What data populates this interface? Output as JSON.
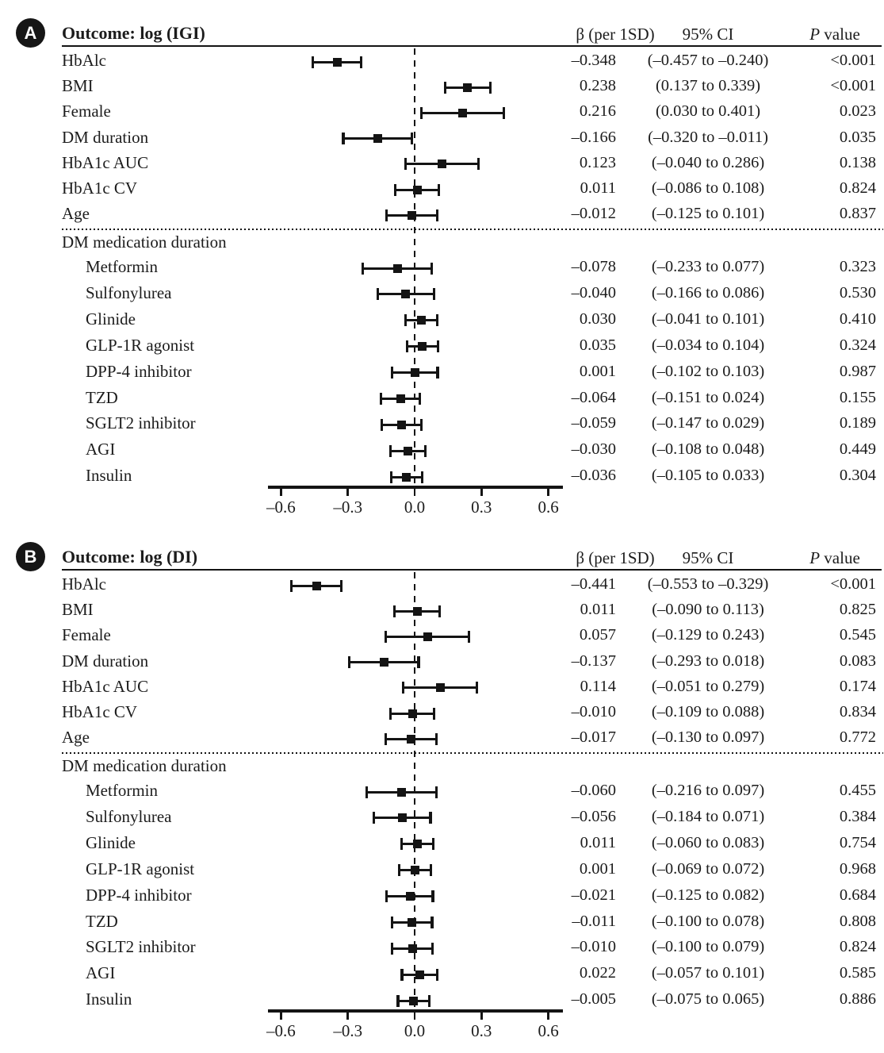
{
  "chart_data": [
    {
      "type": "scatter",
      "variant": "forest-plot",
      "panel_label": "A",
      "title": "Outcome: log (IGI)",
      "columns": {
        "beta": "β (per 1SD)",
        "ci": "95% CI",
        "p_italic": "P",
        "p_rest": "value"
      },
      "group_label": "DM medication duration",
      "legend": "none",
      "grid": false,
      "axis": {
        "min": -0.66,
        "max": 0.66,
        "zero_line": 0.0,
        "ticks": [
          -0.6,
          -0.3,
          0.0,
          0.3,
          0.6
        ],
        "tick_labels": [
          "–0.6",
          "–0.3",
          "0.0",
          "0.3",
          "0.6"
        ]
      },
      "main_rows": [
        {
          "label": "HbAlc",
          "beta": -0.348,
          "lo": -0.457,
          "hi": -0.24,
          "beta_text": "–0.348",
          "ci_text": "(–0.457 to –0.240)",
          "p_text": "<0.001"
        },
        {
          "label": "BMI",
          "beta": 0.238,
          "lo": 0.137,
          "hi": 0.339,
          "beta_text": "0.238",
          "ci_text": "(0.137 to 0.339)",
          "p_text": "<0.001"
        },
        {
          "label": "Female",
          "beta": 0.216,
          "lo": 0.03,
          "hi": 0.401,
          "beta_text": "0.216",
          "ci_text": "(0.030 to 0.401)",
          "p_text": "0.023"
        },
        {
          "label": "DM duration",
          "beta": -0.166,
          "lo": -0.32,
          "hi": -0.011,
          "beta_text": "–0.166",
          "ci_text": "(–0.320 to –0.011)",
          "p_text": "0.035"
        },
        {
          "label": "HbA1c AUC",
          "beta": 0.123,
          "lo": -0.04,
          "hi": 0.286,
          "beta_text": "0.123",
          "ci_text": "(–0.040 to 0.286)",
          "p_text": "0.138"
        },
        {
          "label": "HbA1c CV",
          "beta": 0.011,
          "lo": -0.086,
          "hi": 0.108,
          "beta_text": "0.011",
          "ci_text": "(–0.086 to 0.108)",
          "p_text": "0.824"
        },
        {
          "label": "Age",
          "beta": -0.012,
          "lo": -0.125,
          "hi": 0.101,
          "beta_text": "–0.012",
          "ci_text": "(–0.125 to 0.101)",
          "p_text": "0.837"
        }
      ],
      "med_rows": [
        {
          "label": "Metformin",
          "beta": -0.078,
          "lo": -0.233,
          "hi": 0.077,
          "beta_text": "–0.078",
          "ci_text": "(–0.233 to 0.077)",
          "p_text": "0.323"
        },
        {
          "label": "Sulfonylurea",
          "beta": -0.04,
          "lo": -0.166,
          "hi": 0.086,
          "beta_text": "–0.040",
          "ci_text": "(–0.166 to 0.086)",
          "p_text": "0.530"
        },
        {
          "label": "Glinide",
          "beta": 0.03,
          "lo": -0.041,
          "hi": 0.101,
          "beta_text": "0.030",
          "ci_text": "(–0.041 to 0.101)",
          "p_text": "0.410"
        },
        {
          "label": "GLP-1R agonist",
          "beta": 0.035,
          "lo": -0.034,
          "hi": 0.104,
          "beta_text": "0.035",
          "ci_text": "(–0.034 to 0.104)",
          "p_text": "0.324"
        },
        {
          "label": "DPP-4 inhibitor",
          "beta": 0.001,
          "lo": -0.102,
          "hi": 0.103,
          "beta_text": "0.001",
          "ci_text": "(–0.102 to 0.103)",
          "p_text": "0.987"
        },
        {
          "label": "TZD",
          "beta": -0.064,
          "lo": -0.151,
          "hi": 0.024,
          "beta_text": "–0.064",
          "ci_text": "(–0.151 to 0.024)",
          "p_text": "0.155"
        },
        {
          "label": "SGLT2 inhibitor",
          "beta": -0.059,
          "lo": -0.147,
          "hi": 0.029,
          "beta_text": "–0.059",
          "ci_text": "(–0.147 to 0.029)",
          "p_text": "0.189"
        },
        {
          "label": "AGI",
          "beta": -0.03,
          "lo": -0.108,
          "hi": 0.048,
          "beta_text": "–0.030",
          "ci_text": "(–0.108 to 0.048)",
          "p_text": "0.449"
        },
        {
          "label": "Insulin",
          "beta": -0.036,
          "lo": -0.105,
          "hi": 0.033,
          "beta_text": "–0.036",
          "ci_text": "(–0.105 to 0.033)",
          "p_text": "0.304"
        }
      ]
    },
    {
      "type": "scatter",
      "variant": "forest-plot",
      "panel_label": "B",
      "title": "Outcome: log (DI)",
      "columns": {
        "beta": "β (per 1SD)",
        "ci": "95% CI",
        "p_italic": "P",
        "p_rest": "value"
      },
      "group_label": "DM medication duration",
      "legend": "none",
      "grid": false,
      "axis": {
        "min": -0.66,
        "max": 0.66,
        "zero_line": 0.0,
        "ticks": [
          -0.6,
          -0.3,
          0.0,
          0.3,
          0.6
        ],
        "tick_labels": [
          "–0.6",
          "–0.3",
          "0.0",
          "0.3",
          "0.6"
        ]
      },
      "main_rows": [
        {
          "label": "HbAlc",
          "beta": -0.441,
          "lo": -0.553,
          "hi": -0.329,
          "beta_text": "–0.441",
          "ci_text": "(–0.553 to –0.329)",
          "p_text": "<0.001"
        },
        {
          "label": "BMI",
          "beta": 0.011,
          "lo": -0.09,
          "hi": 0.113,
          "beta_text": "0.011",
          "ci_text": "(–0.090 to 0.113)",
          "p_text": "0.825"
        },
        {
          "label": "Female",
          "beta": 0.057,
          "lo": -0.129,
          "hi": 0.243,
          "beta_text": "0.057",
          "ci_text": "(–0.129 to 0.243)",
          "p_text": "0.545"
        },
        {
          "label": "DM duration",
          "beta": -0.137,
          "lo": -0.293,
          "hi": 0.018,
          "beta_text": "–0.137",
          "ci_text": "(–0.293 to 0.018)",
          "p_text": "0.083"
        },
        {
          "label": "HbA1c AUC",
          "beta": 0.114,
          "lo": -0.051,
          "hi": 0.279,
          "beta_text": "0.114",
          "ci_text": "(–0.051 to 0.279)",
          "p_text": "0.174"
        },
        {
          "label": "HbA1c CV",
          "beta": -0.01,
          "lo": -0.109,
          "hi": 0.088,
          "beta_text": "–0.010",
          "ci_text": "(–0.109 to 0.088)",
          "p_text": "0.834"
        },
        {
          "label": "Age",
          "beta": -0.017,
          "lo": -0.13,
          "hi": 0.097,
          "beta_text": "–0.017",
          "ci_text": "(–0.130 to 0.097)",
          "p_text": "0.772"
        }
      ],
      "med_rows": [
        {
          "label": "Metformin",
          "beta": -0.06,
          "lo": -0.216,
          "hi": 0.097,
          "beta_text": "–0.060",
          "ci_text": "(–0.216 to 0.097)",
          "p_text": "0.455"
        },
        {
          "label": "Sulfonylurea",
          "beta": -0.056,
          "lo": -0.184,
          "hi": 0.071,
          "beta_text": "–0.056",
          "ci_text": "(–0.184 to 0.071)",
          "p_text": "0.384"
        },
        {
          "label": "Glinide",
          "beta": 0.011,
          "lo": -0.06,
          "hi": 0.083,
          "beta_text": "0.011",
          "ci_text": "(–0.060 to 0.083)",
          "p_text": "0.754"
        },
        {
          "label": "GLP-1R agonist",
          "beta": 0.001,
          "lo": -0.069,
          "hi": 0.072,
          "beta_text": "0.001",
          "ci_text": "(–0.069 to 0.072)",
          "p_text": "0.968"
        },
        {
          "label": "DPP-4 inhibitor",
          "beta": -0.021,
          "lo": -0.125,
          "hi": 0.082,
          "beta_text": "–0.021",
          "ci_text": "(–0.125 to 0.082)",
          "p_text": "0.684"
        },
        {
          "label": "TZD",
          "beta": -0.011,
          "lo": -0.1,
          "hi": 0.078,
          "beta_text": "–0.011",
          "ci_text": "(–0.100 to 0.078)",
          "p_text": "0.808"
        },
        {
          "label": "SGLT2 inhibitor",
          "beta": -0.01,
          "lo": -0.1,
          "hi": 0.079,
          "beta_text": "–0.010",
          "ci_text": "(–0.100 to 0.079)",
          "p_text": "0.824"
        },
        {
          "label": "AGI",
          "beta": 0.022,
          "lo": -0.057,
          "hi": 0.101,
          "beta_text": "0.022",
          "ci_text": "(–0.057 to 0.101)",
          "p_text": "0.585"
        },
        {
          "label": "Insulin",
          "beta": -0.005,
          "lo": -0.075,
          "hi": 0.065,
          "beta_text": "–0.005",
          "ci_text": "(–0.075 to 0.065)",
          "p_text": "0.886"
        }
      ]
    }
  ]
}
